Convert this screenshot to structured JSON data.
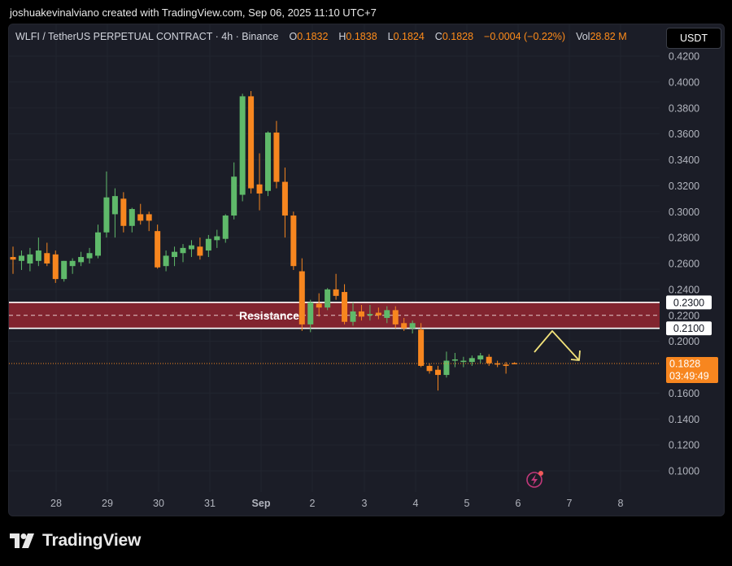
{
  "header": {
    "credit": "joshuakevinalviano created with TradingView.com, Sep 06, 2025 11:10 UTC+7"
  },
  "legend": {
    "symbol": "WLFI / TetherUS PERPETUAL CONTRACT · 4h · Binance",
    "o_label": "O",
    "o_value": "0.1832",
    "h_label": "H",
    "h_value": "0.1838",
    "l_label": "L",
    "l_value": "0.1824",
    "c_label": "C",
    "c_value": "0.1828",
    "change": "−0.0004 (−0.22%)",
    "vol_label": "Vol",
    "vol_value": "28.82 M"
  },
  "currency_button": "USDT",
  "brand": {
    "name": "TradingView"
  },
  "colors": {
    "up": "#5fb96a",
    "down": "#f7861f",
    "zone": "#8a2530",
    "arrow": "#f2e27a",
    "price_tag": "#f7861f"
  },
  "chart_data": {
    "type": "candlestick",
    "y_axis": {
      "ticks": [
        "0.4200",
        "0.4000",
        "0.3800",
        "0.3600",
        "0.3400",
        "0.3200",
        "0.3000",
        "0.2800",
        "0.2600",
        "0.2400",
        "0.2200",
        "0.2000",
        "0.1600",
        "0.1400",
        "0.1200",
        "0.1000"
      ],
      "range": [
        0.09,
        0.425
      ]
    },
    "x_axis": {
      "ticks": [
        "28",
        "29",
        "30",
        "31",
        "Sep",
        "2",
        "3",
        "4",
        "5",
        "6",
        "7",
        "8"
      ]
    },
    "resistance": {
      "label": "Resistance",
      "top": 0.23,
      "bottom": 0.21,
      "top_label": "0.2300",
      "bottom_label": "0.2100"
    },
    "last_price": {
      "value": 0.1828,
      "label": "0.1828",
      "countdown": "03:49:49"
    },
    "candles": [
      {
        "o": 0.265,
        "h": 0.273,
        "l": 0.252,
        "c": 0.263
      },
      {
        "o": 0.262,
        "h": 0.27,
        "l": 0.255,
        "c": 0.266
      },
      {
        "o": 0.26,
        "h": 0.272,
        "l": 0.254,
        "c": 0.267
      },
      {
        "o": 0.262,
        "h": 0.28,
        "l": 0.258,
        "c": 0.27
      },
      {
        "o": 0.268,
        "h": 0.276,
        "l": 0.258,
        "c": 0.26
      },
      {
        "o": 0.267,
        "h": 0.27,
        "l": 0.245,
        "c": 0.248
      },
      {
        "o": 0.248,
        "h": 0.262,
        "l": 0.246,
        "c": 0.262
      },
      {
        "o": 0.258,
        "h": 0.264,
        "l": 0.252,
        "c": 0.262
      },
      {
        "o": 0.261,
        "h": 0.269,
        "l": 0.258,
        "c": 0.265
      },
      {
        "o": 0.264,
        "h": 0.272,
        "l": 0.26,
        "c": 0.268
      },
      {
        "o": 0.266,
        "h": 0.29,
        "l": 0.264,
        "c": 0.284
      },
      {
        "o": 0.284,
        "h": 0.331,
        "l": 0.28,
        "c": 0.311
      },
      {
        "o": 0.298,
        "h": 0.318,
        "l": 0.28,
        "c": 0.312
      },
      {
        "o": 0.31,
        "h": 0.315,
        "l": 0.284,
        "c": 0.289
      },
      {
        "o": 0.289,
        "h": 0.303,
        "l": 0.284,
        "c": 0.302
      },
      {
        "o": 0.298,
        "h": 0.306,
        "l": 0.29,
        "c": 0.293
      },
      {
        "o": 0.298,
        "h": 0.3,
        "l": 0.285,
        "c": 0.293
      },
      {
        "o": 0.285,
        "h": 0.29,
        "l": 0.256,
        "c": 0.257
      },
      {
        "o": 0.258,
        "h": 0.27,
        "l": 0.254,
        "c": 0.266
      },
      {
        "o": 0.265,
        "h": 0.273,
        "l": 0.258,
        "c": 0.269
      },
      {
        "o": 0.268,
        "h": 0.275,
        "l": 0.261,
        "c": 0.272
      },
      {
        "o": 0.271,
        "h": 0.278,
        "l": 0.265,
        "c": 0.274
      },
      {
        "o": 0.273,
        "h": 0.28,
        "l": 0.263,
        "c": 0.266
      },
      {
        "o": 0.27,
        "h": 0.282,
        "l": 0.265,
        "c": 0.279
      },
      {
        "o": 0.278,
        "h": 0.286,
        "l": 0.272,
        "c": 0.281
      },
      {
        "o": 0.279,
        "h": 0.298,
        "l": 0.276,
        "c": 0.297
      },
      {
        "o": 0.297,
        "h": 0.338,
        "l": 0.294,
        "c": 0.327
      },
      {
        "o": 0.313,
        "h": 0.391,
        "l": 0.308,
        "c": 0.389
      },
      {
        "o": 0.389,
        "h": 0.393,
        "l": 0.314,
        "c": 0.318
      },
      {
        "o": 0.321,
        "h": 0.345,
        "l": 0.301,
        "c": 0.314
      },
      {
        "o": 0.316,
        "h": 0.362,
        "l": 0.312,
        "c": 0.361
      },
      {
        "o": 0.361,
        "h": 0.37,
        "l": 0.318,
        "c": 0.323
      },
      {
        "o": 0.323,
        "h": 0.334,
        "l": 0.28,
        "c": 0.297
      },
      {
        "o": 0.297,
        "h": 0.3,
        "l": 0.255,
        "c": 0.258
      },
      {
        "o": 0.254,
        "h": 0.264,
        "l": 0.208,
        "c": 0.213
      },
      {
        "o": 0.213,
        "h": 0.232,
        "l": 0.207,
        "c": 0.23
      },
      {
        "o": 0.229,
        "h": 0.237,
        "l": 0.219,
        "c": 0.226
      },
      {
        "o": 0.226,
        "h": 0.241,
        "l": 0.224,
        "c": 0.24
      },
      {
        "o": 0.24,
        "h": 0.252,
        "l": 0.232,
        "c": 0.235
      },
      {
        "o": 0.238,
        "h": 0.244,
        "l": 0.213,
        "c": 0.215
      },
      {
        "o": 0.215,
        "h": 0.23,
        "l": 0.212,
        "c": 0.223
      },
      {
        "o": 0.223,
        "h": 0.228,
        "l": 0.216,
        "c": 0.219
      },
      {
        "o": 0.22,
        "h": 0.228,
        "l": 0.216,
        "c": 0.221
      },
      {
        "o": 0.222,
        "h": 0.226,
        "l": 0.217,
        "c": 0.22
      },
      {
        "o": 0.218,
        "h": 0.227,
        "l": 0.214,
        "c": 0.224
      },
      {
        "o": 0.224,
        "h": 0.227,
        "l": 0.21,
        "c": 0.213
      },
      {
        "o": 0.214,
        "h": 0.218,
        "l": 0.208,
        "c": 0.21
      },
      {
        "o": 0.21,
        "h": 0.216,
        "l": 0.206,
        "c": 0.214
      },
      {
        "o": 0.209,
        "h": 0.214,
        "l": 0.18,
        "c": 0.181
      },
      {
        "o": 0.181,
        "h": 0.183,
        "l": 0.175,
        "c": 0.177
      },
      {
        "o": 0.178,
        "h": 0.181,
        "l": 0.162,
        "c": 0.174
      },
      {
        "o": 0.174,
        "h": 0.192,
        "l": 0.172,
        "c": 0.185
      },
      {
        "o": 0.185,
        "h": 0.191,
        "l": 0.18,
        "c": 0.186
      },
      {
        "o": 0.184,
        "h": 0.188,
        "l": 0.18,
        "c": 0.185
      },
      {
        "o": 0.184,
        "h": 0.189,
        "l": 0.181,
        "c": 0.187
      },
      {
        "o": 0.186,
        "h": 0.191,
        "l": 0.183,
        "c": 0.189
      },
      {
        "o": 0.188,
        "h": 0.19,
        "l": 0.181,
        "c": 0.183
      },
      {
        "o": 0.183,
        "h": 0.185,
        "l": 0.18,
        "c": 0.182
      },
      {
        "o": 0.182,
        "h": 0.184,
        "l": 0.175,
        "c": 0.181
      },
      {
        "o": 0.1832,
        "h": 0.1838,
        "l": 0.1824,
        "c": 0.1828
      }
    ]
  }
}
